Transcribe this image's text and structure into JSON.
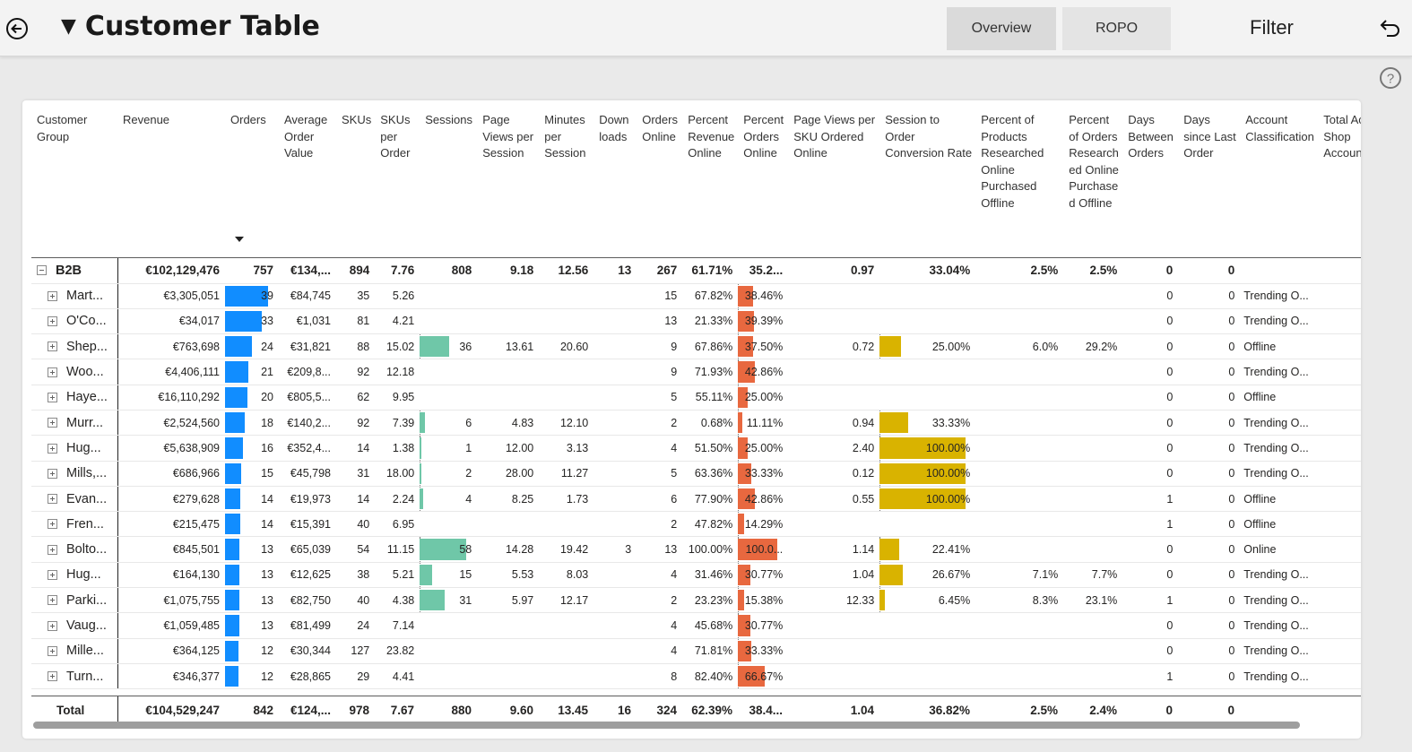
{
  "header": {
    "title": "Customer Table",
    "tabs": [
      "Overview",
      "ROPO"
    ],
    "filter_label": "Filter"
  },
  "table": {
    "columns": [
      "Customer Group",
      "Revenue",
      "Orders",
      "Average Order Value",
      "SKUs",
      "SKUs per Order",
      "Sessions",
      "Page Views per Session",
      "Minutes per Session",
      "Down loads",
      "Orders Online",
      "Percent Revenue Online",
      "Percent Orders Online",
      "Page Views per SKU Ordered Online",
      "Session to Order Conversion Rate",
      "Percent of Products Researched Online Purchased Offline",
      "Percent of Orders Research ed Online Purchase d Offline",
      "Days Between Orders",
      "Days since Last Order",
      "Account Classification",
      "Total Ac Shop Account"
    ],
    "group": {
      "name": "B2B",
      "cells": [
        "€102,129,476",
        "757",
        "€134,...",
        "894",
        "7.76",
        "808",
        "9.18",
        "12.56",
        "13",
        "267",
        "61.71%",
        "35.2...",
        "0.97",
        "33.04%",
        "2.5%",
        "2.5%",
        "0",
        "0",
        "",
        ""
      ]
    },
    "rows": [
      {
        "name": "Mart...",
        "revenue": "€3,305,051",
        "orders": 39,
        "orders_text": "39",
        "aov": "€84,745",
        "skus": "35",
        "skus_per": "5.26",
        "sessions": null,
        "sessions_text": "",
        "pv": "",
        "min": "",
        "dl": "",
        "oo": "15",
        "pro": "67.82%",
        "poo": 38.46,
        "poo_text": "38.46%",
        "pvsku": "",
        "conv": null,
        "conv_text": "",
        "rpo": "",
        "ror": "",
        "dbo": "0",
        "dslo": "0",
        "acct": "Trending O...",
        "tot": ""
      },
      {
        "name": "O'Co...",
        "revenue": "€34,017",
        "orders": 33,
        "orders_text": "33",
        "aov": "€1,031",
        "skus": "81",
        "skus_per": "4.21",
        "sessions": null,
        "sessions_text": "",
        "pv": "",
        "min": "",
        "dl": "",
        "oo": "13",
        "pro": "21.33%",
        "poo": 39.39,
        "poo_text": "39.39%",
        "pvsku": "",
        "conv": null,
        "conv_text": "",
        "rpo": "",
        "ror": "",
        "dbo": "0",
        "dslo": "0",
        "acct": "Trending O...",
        "tot": ""
      },
      {
        "name": "Shep...",
        "revenue": "€763,698",
        "orders": 24,
        "orders_text": "24",
        "aov": "€31,821",
        "skus": "88",
        "skus_per": "15.02",
        "sessions": 36,
        "sessions_text": "36",
        "pv": "13.61",
        "min": "20.60",
        "dl": "",
        "oo": "9",
        "pro": "67.86%",
        "poo": 37.5,
        "poo_text": "37.50%",
        "pvsku": "0.72",
        "conv": 25.0,
        "conv_text": "25.00%",
        "rpo": "6.0%",
        "ror": "29.2%",
        "dbo": "0",
        "dslo": "0",
        "acct": "Offline",
        "tot": ""
      },
      {
        "name": "Woo...",
        "revenue": "€4,406,111",
        "orders": 21,
        "orders_text": "21",
        "aov": "€209,8...",
        "skus": "92",
        "skus_per": "12.18",
        "sessions": null,
        "sessions_text": "",
        "pv": "",
        "min": "",
        "dl": "",
        "oo": "9",
        "pro": "71.93%",
        "poo": 42.86,
        "poo_text": "42.86%",
        "pvsku": "",
        "conv": null,
        "conv_text": "",
        "rpo": "",
        "ror": "",
        "dbo": "0",
        "dslo": "0",
        "acct": "Trending O...",
        "tot": ""
      },
      {
        "name": "Haye...",
        "revenue": "€16,110,292",
        "orders": 20,
        "orders_text": "20",
        "aov": "€805,5...",
        "skus": "62",
        "skus_per": "9.95",
        "sessions": null,
        "sessions_text": "",
        "pv": "",
        "min": "",
        "dl": "",
        "oo": "5",
        "pro": "55.11%",
        "poo": 25.0,
        "poo_text": "25.00%",
        "pvsku": "",
        "conv": null,
        "conv_text": "",
        "rpo": "",
        "ror": "",
        "dbo": "0",
        "dslo": "0",
        "acct": "Offline",
        "tot": ""
      },
      {
        "name": "Murr...",
        "revenue": "€2,524,560",
        "orders": 18,
        "orders_text": "18",
        "aov": "€140,2...",
        "skus": "92",
        "skus_per": "7.39",
        "sessions": 6,
        "sessions_text": "6",
        "pv": "4.83",
        "min": "12.10",
        "dl": "",
        "oo": "2",
        "pro": "0.68%",
        "poo": 11.11,
        "poo_text": "11.11%",
        "pvsku": "0.94",
        "conv": 33.33,
        "conv_text": "33.33%",
        "rpo": "",
        "ror": "",
        "dbo": "0",
        "dslo": "0",
        "acct": "Trending O...",
        "tot": ""
      },
      {
        "name": "Hug...",
        "revenue": "€5,638,909",
        "orders": 16,
        "orders_text": "16",
        "aov": "€352,4...",
        "skus": "14",
        "skus_per": "1.38",
        "sessions": 1,
        "sessions_text": "1",
        "pv": "12.00",
        "min": "3.13",
        "dl": "",
        "oo": "4",
        "pro": "51.50%",
        "poo": 25.0,
        "poo_text": "25.00%",
        "pvsku": "2.40",
        "conv": 100.0,
        "conv_text": "100.00%",
        "rpo": "",
        "ror": "",
        "dbo": "0",
        "dslo": "0",
        "acct": "Trending O...",
        "tot": ""
      },
      {
        "name": "Mills,...",
        "revenue": "€686,966",
        "orders": 15,
        "orders_text": "15",
        "aov": "€45,798",
        "skus": "31",
        "skus_per": "18.00",
        "sessions": 2,
        "sessions_text": "2",
        "pv": "28.00",
        "min": "11.27",
        "dl": "",
        "oo": "5",
        "pro": "63.36%",
        "poo": 33.33,
        "poo_text": "33.33%",
        "pvsku": "0.12",
        "conv": 100.0,
        "conv_text": "100.00%",
        "rpo": "",
        "ror": "",
        "dbo": "0",
        "dslo": "0",
        "acct": "Trending O...",
        "tot": ""
      },
      {
        "name": "Evan...",
        "revenue": "€279,628",
        "orders": 14,
        "orders_text": "14",
        "aov": "€19,973",
        "skus": "14",
        "skus_per": "2.24",
        "sessions": 4,
        "sessions_text": "4",
        "pv": "8.25",
        "min": "1.73",
        "dl": "",
        "oo": "6",
        "pro": "77.90%",
        "poo": 42.86,
        "poo_text": "42.86%",
        "pvsku": "0.55",
        "conv": 100.0,
        "conv_text": "100.00%",
        "rpo": "",
        "ror": "",
        "dbo": "1",
        "dslo": "0",
        "acct": "Offline",
        "tot": ""
      },
      {
        "name": "Fren...",
        "revenue": "€215,475",
        "orders": 14,
        "orders_text": "14",
        "aov": "€15,391",
        "skus": "40",
        "skus_per": "6.95",
        "sessions": null,
        "sessions_text": "",
        "pv": "",
        "min": "",
        "dl": "",
        "oo": "2",
        "pro": "47.82%",
        "poo": 14.29,
        "poo_text": "14.29%",
        "pvsku": "",
        "conv": null,
        "conv_text": "",
        "rpo": "",
        "ror": "",
        "dbo": "1",
        "dslo": "0",
        "acct": "Offline",
        "tot": ""
      },
      {
        "name": "Bolto...",
        "revenue": "€845,501",
        "orders": 13,
        "orders_text": "13",
        "aov": "€65,039",
        "skus": "54",
        "skus_per": "11.15",
        "sessions": 58,
        "sessions_text": "58",
        "pv": "14.28",
        "min": "19.42",
        "dl": "3",
        "oo": "13",
        "pro": "100.00%",
        "poo": 100.0,
        "poo_text": "100.0...",
        "pvsku": "1.14",
        "conv": 22.41,
        "conv_text": "22.41%",
        "rpo": "",
        "ror": "",
        "dbo": "0",
        "dslo": "0",
        "acct": "Online",
        "tot": ""
      },
      {
        "name": "Hug...",
        "revenue": "€164,130",
        "orders": 13,
        "orders_text": "13",
        "aov": "€12,625",
        "skus": "38",
        "skus_per": "5.21",
        "sessions": 15,
        "sessions_text": "15",
        "pv": "5.53",
        "min": "8.03",
        "dl": "",
        "oo": "4",
        "pro": "31.46%",
        "poo": 30.77,
        "poo_text": "30.77%",
        "pvsku": "1.04",
        "conv": 26.67,
        "conv_text": "26.67%",
        "rpo": "7.1%",
        "ror": "7.7%",
        "dbo": "0",
        "dslo": "0",
        "acct": "Trending O...",
        "tot": ""
      },
      {
        "name": "Parki...",
        "revenue": "€1,075,755",
        "orders": 13,
        "orders_text": "13",
        "aov": "€82,750",
        "skus": "40",
        "skus_per": "4.38",
        "sessions": 31,
        "sessions_text": "31",
        "pv": "5.97",
        "min": "12.17",
        "dl": "",
        "oo": "2",
        "pro": "23.23%",
        "poo": 15.38,
        "poo_text": "15.38%",
        "pvsku": "12.33",
        "conv": 6.45,
        "conv_text": "6.45%",
        "rpo": "8.3%",
        "ror": "23.1%",
        "dbo": "1",
        "dslo": "0",
        "acct": "Trending O...",
        "tot": ""
      },
      {
        "name": "Vaug...",
        "revenue": "€1,059,485",
        "orders": 13,
        "orders_text": "13",
        "aov": "€81,499",
        "skus": "24",
        "skus_per": "7.14",
        "sessions": null,
        "sessions_text": "",
        "pv": "",
        "min": "",
        "dl": "",
        "oo": "4",
        "pro": "45.68%",
        "poo": 30.77,
        "poo_text": "30.77%",
        "pvsku": "",
        "conv": null,
        "conv_text": "",
        "rpo": "",
        "ror": "",
        "dbo": "0",
        "dslo": "0",
        "acct": "Trending O...",
        "tot": ""
      },
      {
        "name": "Mille...",
        "revenue": "€364,125",
        "orders": 12,
        "orders_text": "12",
        "aov": "€30,344",
        "skus": "127",
        "skus_per": "23.82",
        "sessions": null,
        "sessions_text": "",
        "pv": "",
        "min": "",
        "dl": "",
        "oo": "4",
        "pro": "71.81%",
        "poo": 33.33,
        "poo_text": "33.33%",
        "pvsku": "",
        "conv": null,
        "conv_text": "",
        "rpo": "",
        "ror": "",
        "dbo": "0",
        "dslo": "0",
        "acct": "Trending O...",
        "tot": ""
      },
      {
        "name": "Turn...",
        "revenue": "€346,377",
        "orders": 12,
        "orders_text": "12",
        "aov": "€28,865",
        "skus": "29",
        "skus_per": "4.41",
        "sessions": null,
        "sessions_text": "",
        "pv": "",
        "min": "",
        "dl": "",
        "oo": "8",
        "pro": "82.40%",
        "poo": 66.67,
        "poo_text": "66.67%",
        "pvsku": "",
        "conv": null,
        "conv_text": "",
        "rpo": "",
        "ror": "",
        "dbo": "1",
        "dslo": "0",
        "acct": "Trending O...",
        "tot": ""
      }
    ],
    "total": {
      "label": "Total",
      "cells": [
        "€104,529,247",
        "842",
        "€124,...",
        "978",
        "7.67",
        "880",
        "9.60",
        "13.45",
        "16",
        "324",
        "62.39%",
        "38.4...",
        "1.04",
        "36.82%",
        "2.5%",
        "2.4%",
        "0",
        "0",
        "",
        ""
      ]
    }
  },
  "colors": {
    "orders_bar": "#118dff",
    "sessions_bar": "#6fc7a8",
    "orders_online_bar": "#e8683f",
    "conversion_bar": "#d9b300"
  }
}
